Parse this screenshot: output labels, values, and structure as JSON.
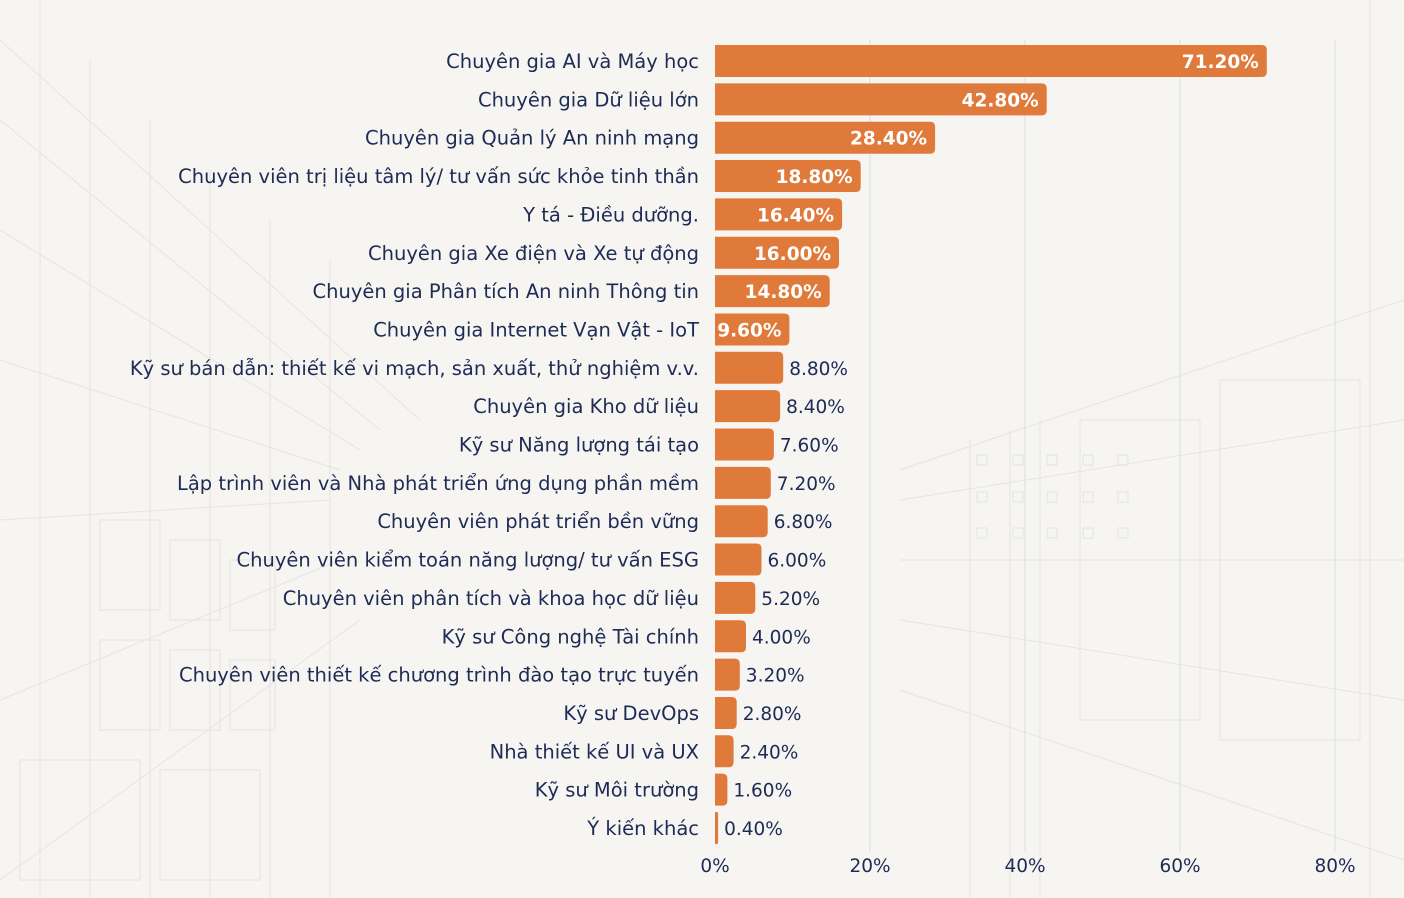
{
  "chart_data": {
    "type": "bar",
    "orientation": "horizontal",
    "categories": [
      "Chuyên gia AI và Máy học",
      "Chuyên gia Dữ liệu lớn",
      "Chuyên gia Quản lý An ninh mạng",
      "Chuyên viên trị liệu tâm lý/ tư vấn sức khỏe tinh thần",
      "Y tá - Điều dưỡng.",
      "Chuyên gia Xe điện và Xe tự động",
      "Chuyên gia Phân tích An ninh Thông tin",
      "Chuyên gia Internet Vạn Vật - IoT",
      "Kỹ sư bán dẫn: thiết kế vi mạch, sản xuất, thử nghiệm v.v.",
      "Chuyên gia Kho dữ liệu",
      "Kỹ sư Năng lượng tái tạo",
      "Lập trình viên và Nhà phát triển ứng dụng phần mềm",
      "Chuyên viên phát triển bền vững",
      "Chuyên viên kiểm toán năng lượng/ tư vấn ESG",
      "Chuyên viên phân tích và khoa học dữ liệu",
      "Kỹ sư Công nghệ Tài chính",
      "Chuyên viên thiết kế chương trình đào tạo trực tuyến",
      "Kỹ sư DevOps",
      "Nhà thiết kế UI và UX",
      "Kỹ sư Môi trường",
      "Ý kiến khác"
    ],
    "values": [
      71.2,
      42.8,
      28.4,
      18.8,
      16.4,
      16.0,
      14.8,
      9.6,
      8.8,
      8.4,
      7.6,
      7.2,
      6.8,
      6.0,
      5.2,
      4.0,
      3.2,
      2.8,
      2.4,
      1.6,
      0.4
    ],
    "value_labels": [
      "71.20%",
      "42.80%",
      "28.40%",
      "18.80%",
      "16.40%",
      "16.00%",
      "14.80%",
      "9.60%",
      "8.80%",
      "8.40%",
      "7.60%",
      "7.20%",
      "6.80%",
      "6.00%",
      "5.20%",
      "4.00%",
      "3.20%",
      "2.80%",
      "2.40%",
      "1.60%",
      "0.40%"
    ],
    "xlim": [
      0,
      80
    ],
    "xticks": [
      0,
      20,
      40,
      60,
      80
    ],
    "xtick_labels": [
      "0%",
      "20%",
      "40%",
      "60%",
      "80%"
    ],
    "grid": "vertical",
    "bar_color": "#e07a3b",
    "text_color": "#1d2b55",
    "background_color": "#f7f5f2"
  }
}
